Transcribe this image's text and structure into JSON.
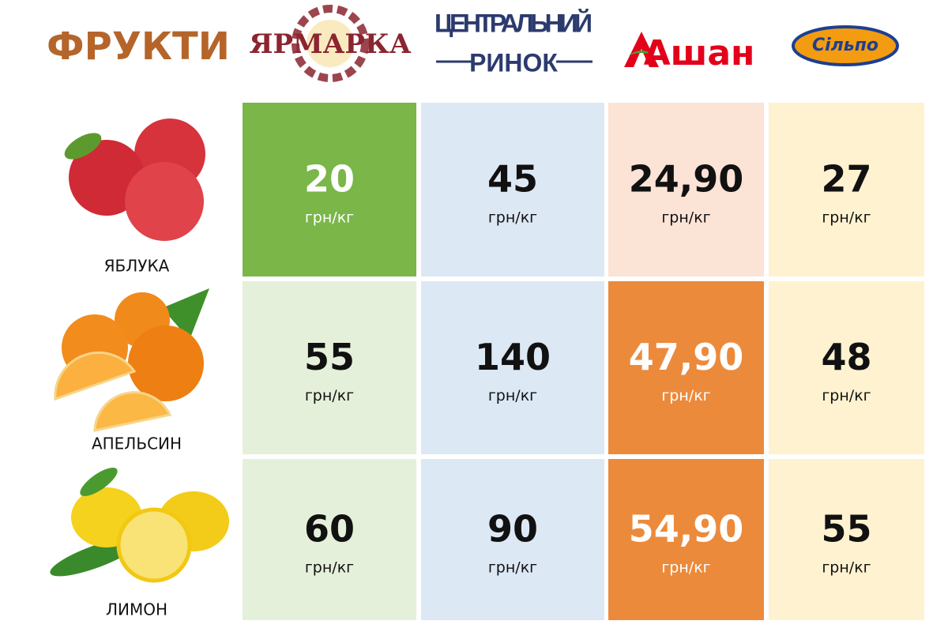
{
  "header": {
    "title": "ФРУКТИ",
    "stores": [
      {
        "name": "ЯРМАРКА",
        "color": "#e5f0da"
      },
      {
        "name": "ЦЕНТРАЛЬНИЙ",
        "subname": "РИНОК",
        "color": "#dde8f5"
      },
      {
        "name": "Ашан",
        "color": "#fbe3d6"
      },
      {
        "name": "Сільпо",
        "color": "#fef2d0"
      }
    ]
  },
  "table": {
    "rows": [
      {
        "fruit": "ЯБЛУКА",
        "cells": [
          {
            "price": "20",
            "unit": "грн/кг",
            "highlight": "#7ab648"
          },
          {
            "price": "45",
            "unit": "грн/кг"
          },
          {
            "price": "24,90",
            "unit": "грн/кг"
          },
          {
            "price": "27",
            "unit": "грн/кг"
          }
        ]
      },
      {
        "fruit": "АПЕЛЬСИН",
        "cells": [
          {
            "price": "55",
            "unit": "грн/кг"
          },
          {
            "price": "140",
            "unit": "грн/кг"
          },
          {
            "price": "47,90",
            "unit": "грн/кг",
            "highlight": "#ec8a3c"
          },
          {
            "price": "48",
            "unit": "грн/кг"
          }
        ]
      },
      {
        "fruit": "ЛИМОН",
        "cells": [
          {
            "price": "60",
            "unit": "грн/кг"
          },
          {
            "price": "90",
            "unit": "грн/кг"
          },
          {
            "price": "54,90",
            "unit": "грн/кг",
            "highlight": "#ec8a3c"
          },
          {
            "price": "55",
            "unit": "грн/кг"
          }
        ]
      }
    ]
  }
}
